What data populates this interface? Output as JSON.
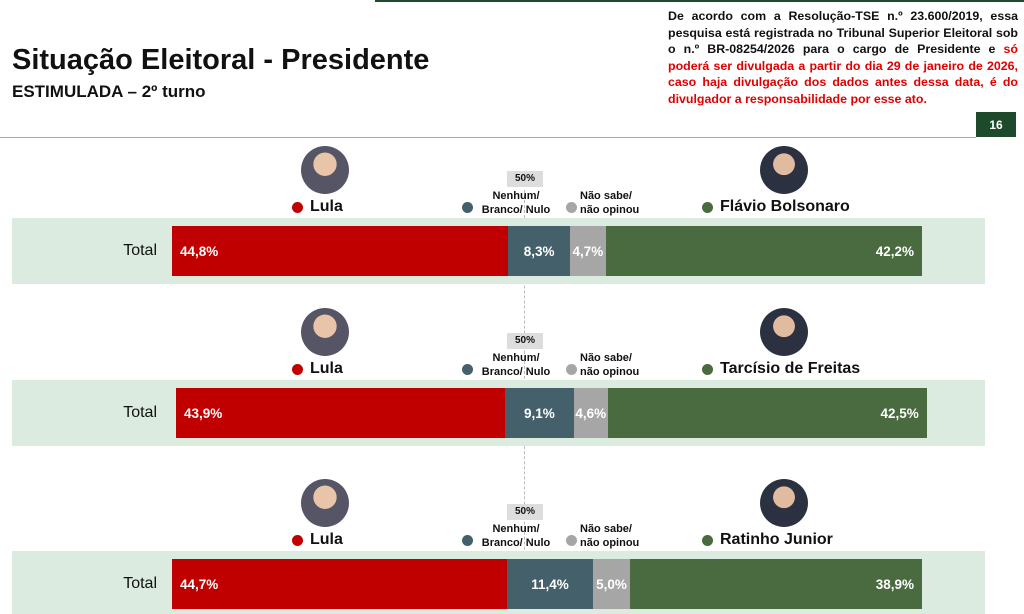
{
  "header": {
    "title": "Situação Eleitoral - Presidente",
    "subtitle": "ESTIMULADA – 2º turno",
    "notice": "De acordo com a Resolução-TSE n.º 23.600/2019, essa pesquisa está registrada no Tribunal Superior Eleitoral sob o n.º BR-08254/2026 para o cargo de Presidente e ",
    "notice_highlight": "só poderá ser divulgada a partir do dia 29 de janeiro de 2026, caso haja divulgação dos dados antes dessa data, é do divulgador a responsabilidade por esse ato.",
    "page_number": "16"
  },
  "chart_data": [
    {
      "type": "bar",
      "stacked": true,
      "midline_label": "50%",
      "xlim": [
        0,
        100
      ],
      "categories": [
        "Total"
      ],
      "series": [
        {
          "name": "Lula",
          "color": "#c00000",
          "values": [
            44.8
          ],
          "value_labels": [
            "44,8%"
          ]
        },
        {
          "name": "Nenhum/ Branco/ Nulo",
          "color": "#44606b",
          "values": [
            8.3
          ],
          "value_labels": [
            "8,3%"
          ]
        },
        {
          "name": "Não sabe/ não opinou",
          "color": "#a6a6a6",
          "values": [
            4.7
          ],
          "value_labels": [
            "4,7%"
          ]
        },
        {
          "name": "Flávio Bolsonaro",
          "color": "#4a6a3f",
          "values": [
            42.2
          ],
          "value_labels": [
            "42,2%"
          ]
        }
      ]
    },
    {
      "type": "bar",
      "stacked": true,
      "midline_label": "50%",
      "xlim": [
        0,
        100
      ],
      "categories": [
        "Total"
      ],
      "series": [
        {
          "name": "Lula",
          "color": "#c00000",
          "values": [
            43.9
          ],
          "value_labels": [
            "43,9%"
          ]
        },
        {
          "name": "Nenhum/ Branco/ Nulo",
          "color": "#44606b",
          "values": [
            9.1
          ],
          "value_labels": [
            "9,1%"
          ]
        },
        {
          "name": "Não sabe/ não opinou",
          "color": "#a6a6a6",
          "values": [
            4.6
          ],
          "value_labels": [
            "4,6%"
          ]
        },
        {
          "name": "Tarcísio de Freitas",
          "color": "#4a6a3f",
          "values": [
            42.5
          ],
          "value_labels": [
            "42,5%"
          ]
        }
      ]
    },
    {
      "type": "bar",
      "stacked": true,
      "midline_label": "50%",
      "xlim": [
        0,
        100
      ],
      "categories": [
        "Total"
      ],
      "series": [
        {
          "name": "Lula",
          "color": "#c00000",
          "values": [
            44.7
          ],
          "value_labels": [
            "44,7%"
          ]
        },
        {
          "name": "Nenhum/ Branco/ Nulo",
          "color": "#44606b",
          "values": [
            11.4
          ],
          "value_labels": [
            "11,4%"
          ]
        },
        {
          "name": "Não sabe/ não opinou",
          "color": "#a6a6a6",
          "values": [
            5.0
          ],
          "value_labels": [
            "5,0%"
          ]
        },
        {
          "name": "Ratinho Junior",
          "color": "#4a6a3f",
          "values": [
            38.9
          ],
          "value_labels": [
            "38,9%"
          ]
        }
      ]
    }
  ]
}
